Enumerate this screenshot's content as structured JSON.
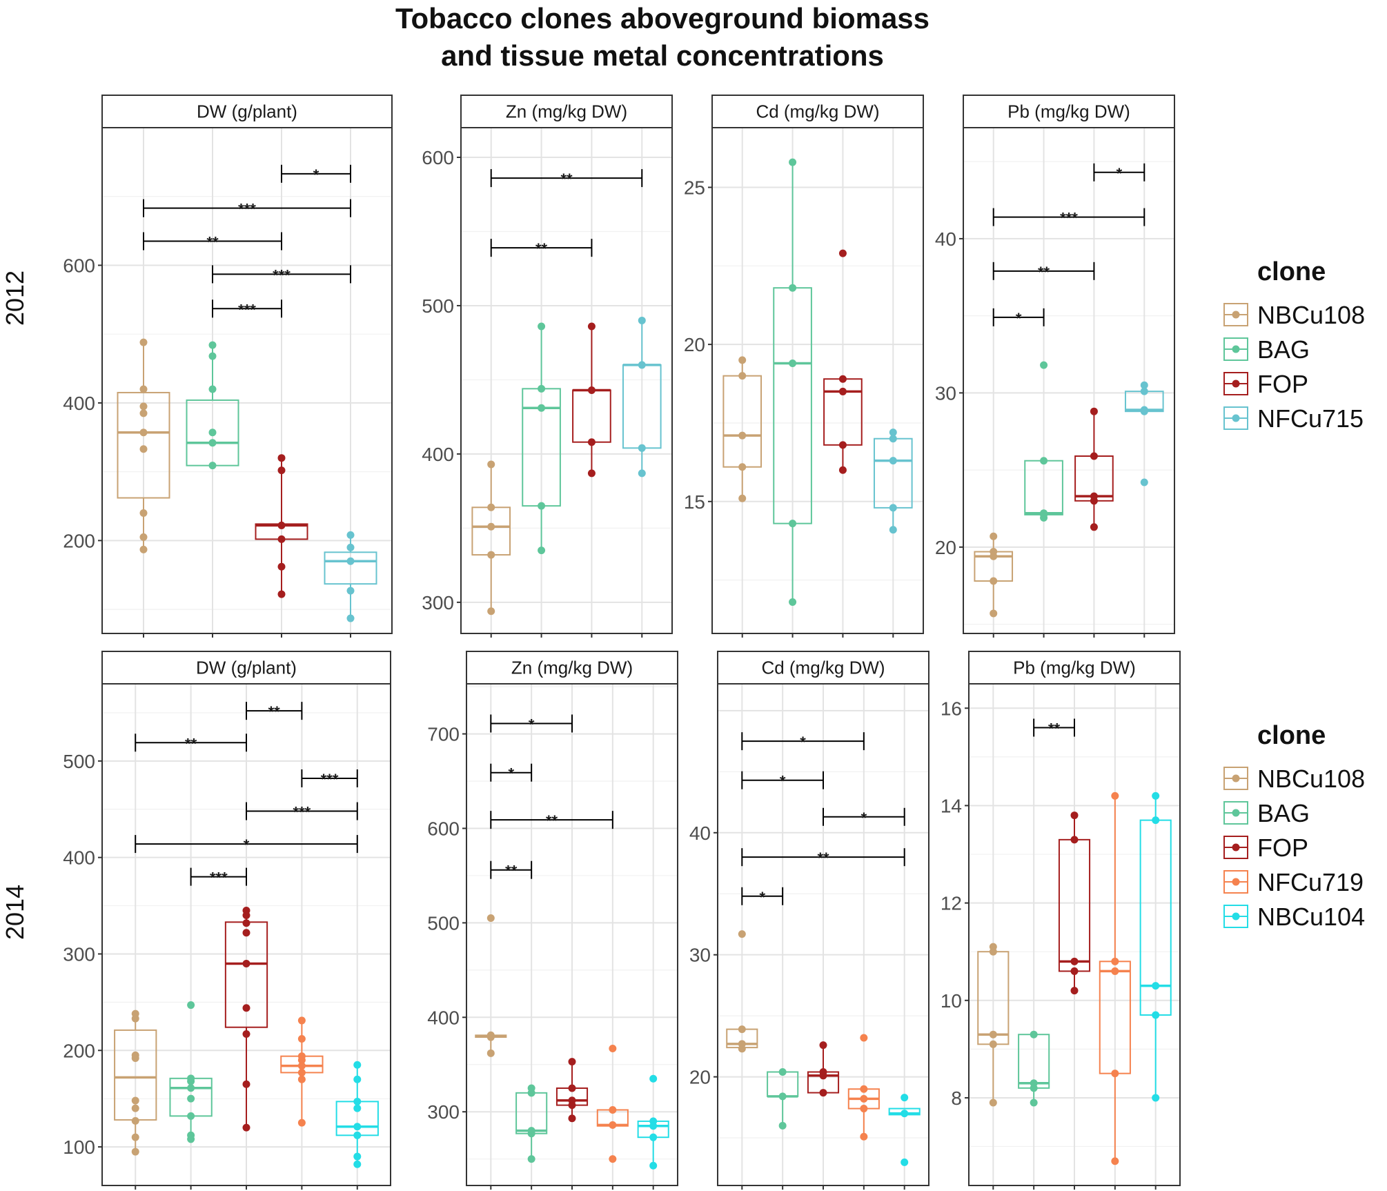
{
  "title": {
    "line1": "Tobacco clones aboveground biomass",
    "line2": "and tissue metal concentrations"
  },
  "colors": {
    "NBCu108": "#c8a273",
    "BAG": "#5ec69a",
    "FOP": "#a51e1e",
    "NFCu715": "#67c3cf",
    "NFCu719": "#f5824e",
    "NBCu104": "#23dde6"
  },
  "chart_data": [
    {
      "type": "box",
      "row": "2012",
      "strip": "DW (g/plant)",
      "clones": [
        "NBCu108",
        "BAG",
        "FOP",
        "NFCu715"
      ],
      "ylim": [
        65,
        800
      ],
      "yticks": [
        200,
        400,
        600
      ],
      "boxes": [
        {
          "q1": 262,
          "median": 357,
          "q3": 415,
          "wlo": 187,
          "whi": 488,
          "points": [
            488,
            420,
            395,
            385,
            357,
            333,
            240,
            205,
            187
          ]
        },
        {
          "q1": 309,
          "median": 342,
          "q3": 404,
          "wlo": 309,
          "whi": 484,
          "points": [
            484,
            468,
            420,
            357,
            342,
            309
          ]
        },
        {
          "q1": 202,
          "median": 222,
          "q3": 224,
          "wlo": 122,
          "whi": 320,
          "points": [
            320,
            302,
            222,
            202,
            162,
            122
          ]
        },
        {
          "q1": 137,
          "median": 170,
          "q3": 183,
          "wlo": 87,
          "whi": 208,
          "points": [
            208,
            190,
            170,
            127,
            87
          ]
        }
      ],
      "brackets": [
        {
          "from": 3,
          "to": 4,
          "y": 733,
          "label": "*"
        },
        {
          "from": 1,
          "to": 4,
          "y": 683,
          "label": "***"
        },
        {
          "from": 1,
          "to": 3,
          "y": 635,
          "label": "**"
        },
        {
          "from": 2,
          "to": 4,
          "y": 587,
          "label": "***"
        },
        {
          "from": 2,
          "to": 3,
          "y": 537,
          "label": "***"
        }
      ]
    },
    {
      "type": "box",
      "row": "2012",
      "strip": "Zn (mg/kg DW)",
      "clones": [
        "NBCu108",
        "BAG",
        "FOP",
        "NFCu715"
      ],
      "ylim": [
        279,
        620
      ],
      "yticks": [
        300,
        400,
        500,
        600
      ],
      "boxes": [
        {
          "q1": 332,
          "median": 351,
          "q3": 364,
          "wlo": 294,
          "whi": 393,
          "points": [
            393,
            364,
            351,
            332,
            294
          ]
        },
        {
          "q1": 365,
          "median": 431,
          "q3": 444,
          "wlo": 335,
          "whi": 486,
          "points": [
            486,
            444,
            431,
            365,
            335
          ]
        },
        {
          "q1": 408,
          "median": 443,
          "q3": 443,
          "wlo": 387,
          "whi": 486,
          "points": [
            486,
            443,
            408,
            387
          ]
        },
        {
          "q1": 404,
          "median": 460,
          "q3": 460,
          "wlo": 387,
          "whi": 490,
          "points": [
            490,
            460,
            404,
            387
          ]
        }
      ],
      "brackets": [
        {
          "from": 1,
          "to": 4,
          "y": 586,
          "label": "**"
        },
        {
          "from": 1,
          "to": 3,
          "y": 539,
          "label": "**"
        }
      ]
    },
    {
      "type": "box",
      "row": "2012",
      "strip": "Cd (mg/kg DW)",
      "clones": [
        "NBCu108",
        "BAG",
        "FOP",
        "NFCu715"
      ],
      "ylim": [
        10.8,
        26.9
      ],
      "yticks": [
        15,
        20,
        25
      ],
      "boxes": [
        {
          "q1": 16.1,
          "median": 17.1,
          "q3": 19.0,
          "wlo": 15.1,
          "whi": 19.5,
          "points": [
            19.5,
            19.0,
            17.1,
            16.1,
            15.1
          ]
        },
        {
          "q1": 14.3,
          "median": 19.4,
          "q3": 21.8,
          "wlo": 11.8,
          "whi": 25.8,
          "points": [
            25.8,
            21.8,
            19.4,
            14.3,
            11.8
          ]
        },
        {
          "q1": 16.8,
          "median": 18.5,
          "q3": 18.9,
          "wlo": 16.0,
          "whi": 18.9,
          "points": [
            22.9,
            18.9,
            18.5,
            16.8,
            16.0
          ]
        },
        {
          "q1": 14.8,
          "median": 16.3,
          "q3": 17.0,
          "wlo": 14.1,
          "whi": 17.2,
          "points": [
            17.2,
            17.0,
            16.3,
            14.8,
            14.1
          ]
        }
      ],
      "brackets": []
    },
    {
      "type": "box",
      "row": "2012",
      "strip": "Pb (mg/kg DW)",
      "clones": [
        "NBCu108",
        "BAG",
        "FOP",
        "NFCu715"
      ],
      "ylim": [
        14.4,
        47.2
      ],
      "yticks": [
        20,
        30,
        40
      ],
      "boxes": [
        {
          "q1": 17.8,
          "median": 19.4,
          "q3": 19.7,
          "wlo": 15.7,
          "whi": 20.7,
          "points": [
            20.7,
            19.7,
            19.4,
            17.8,
            15.7
          ]
        },
        {
          "q1": 22.1,
          "median": 22.2,
          "q3": 25.6,
          "wlo": 21.9,
          "whi": 25.6,
          "points": [
            31.8,
            25.6,
            22.2,
            22.1,
            21.9
          ]
        },
        {
          "q1": 23.0,
          "median": 23.3,
          "q3": 25.9,
          "wlo": 21.3,
          "whi": 28.8,
          "points": [
            28.8,
            25.9,
            23.3,
            23.0,
            21.3
          ]
        },
        {
          "q1": 28.8,
          "median": 28.9,
          "q3": 30.1,
          "wlo": 28.8,
          "whi": 30.5,
          "points": [
            30.5,
            30.1,
            28.9,
            28.8,
            24.2
          ]
        }
      ],
      "brackets": [
        {
          "from": 3,
          "to": 4,
          "y": 44.3,
          "label": "*"
        },
        {
          "from": 1,
          "to": 4,
          "y": 41.4,
          "label": "***"
        },
        {
          "from": 1,
          "to": 3,
          "y": 37.9,
          "label": "**"
        },
        {
          "from": 1,
          "to": 2,
          "y": 34.9,
          "label": "*"
        }
      ]
    },
    {
      "type": "box",
      "row": "2014",
      "strip": "DW (g/plant)",
      "clones": [
        "NBCu108",
        "BAG",
        "FOP",
        "NFCu719",
        "NBCu104"
      ],
      "ylim": [
        60,
        580
      ],
      "yticks": [
        100,
        200,
        300,
        400,
        500
      ],
      "boxes": [
        {
          "q1": 128,
          "median": 172,
          "q3": 221,
          "wlo": 95,
          "whi": 238,
          "points": [
            238,
            233,
            195,
            192,
            148,
            140,
            127,
            110,
            95
          ]
        },
        {
          "q1": 132,
          "median": 161,
          "q3": 171,
          "wlo": 108,
          "whi": 171,
          "points": [
            247,
            171,
            168,
            161,
            150,
            132,
            112,
            108
          ]
        },
        {
          "q1": 224,
          "median": 290,
          "q3": 333,
          "wlo": 120,
          "whi": 345,
          "points": [
            345,
            340,
            332,
            322,
            290,
            244,
            217,
            165,
            120
          ]
        },
        {
          "q1": 177,
          "median": 184,
          "q3": 194,
          "wlo": 125,
          "whi": 231,
          "points": [
            231,
            212,
            194,
            190,
            184,
            177,
            170,
            125
          ]
        },
        {
          "q1": 112,
          "median": 121,
          "q3": 147,
          "wlo": 82,
          "whi": 185,
          "points": [
            185,
            170,
            147,
            140,
            121,
            112,
            90,
            82
          ]
        }
      ],
      "brackets": [
        {
          "from": 3,
          "to": 4,
          "y": 552,
          "label": "**"
        },
        {
          "from": 1,
          "to": 3,
          "y": 519,
          "label": "**"
        },
        {
          "from": 4,
          "to": 5,
          "y": 482,
          "label": "***"
        },
        {
          "from": 3,
          "to": 5,
          "y": 448,
          "label": "***"
        },
        {
          "from": 1,
          "to": 5,
          "y": 414,
          "label": "*"
        },
        {
          "from": 2,
          "to": 3,
          "y": 380,
          "label": "***"
        }
      ]
    },
    {
      "type": "box",
      "row": "2014",
      "strip": "Zn (mg/kg DW)",
      "clones": [
        "NBCu108",
        "BAG",
        "FOP",
        "NFCu719",
        "NBCu104"
      ],
      "ylim": [
        222,
        753
      ],
      "yticks": [
        300,
        400,
        500,
        600,
        700
      ],
      "boxes": [
        {
          "q1": 379,
          "median": 380,
          "q3": 381,
          "wlo": 362,
          "whi": 381,
          "points": [
            505,
            381,
            379,
            362
          ]
        },
        {
          "q1": 277,
          "median": 280,
          "q3": 320,
          "wlo": 250,
          "whi": 325,
          "points": [
            325,
            320,
            280,
            277,
            250
          ]
        },
        {
          "q1": 307,
          "median": 312,
          "q3": 325,
          "wlo": 293,
          "whi": 353,
          "points": [
            353,
            325,
            312,
            307,
            293
          ]
        },
        {
          "q1": 285,
          "median": 286,
          "q3": 302,
          "wlo": 285,
          "whi": 302,
          "points": [
            367,
            302,
            286,
            250
          ]
        },
        {
          "q1": 273,
          "median": 285,
          "q3": 290,
          "wlo": 243,
          "whi": 290,
          "points": [
            335,
            290,
            285,
            273,
            243
          ]
        }
      ],
      "brackets": [
        {
          "from": 1,
          "to": 3,
          "y": 711,
          "label": "*"
        },
        {
          "from": 1,
          "to": 2,
          "y": 659,
          "label": "*"
        },
        {
          "from": 1,
          "to": 4,
          "y": 609,
          "label": "**"
        },
        {
          "from": 1,
          "to": 2,
          "y": 556,
          "label": "**"
        }
      ]
    },
    {
      "type": "box",
      "row": "2014",
      "strip": "Cd (mg/kg DW)",
      "clones": [
        "NBCu108",
        "BAG",
        "FOP",
        "NFCu719",
        "NBCu104"
      ],
      "ylim": [
        11.1,
        52.2
      ],
      "yticks": [
        20,
        30,
        40
      ],
      "boxes": [
        {
          "q1": 22.4,
          "median": 22.7,
          "q3": 23.9,
          "wlo": 22.3,
          "whi": 23.9,
          "points": [
            31.7,
            23.9,
            22.7,
            22.3
          ]
        },
        {
          "q1": 18.4,
          "median": 18.4,
          "q3": 20.4,
          "wlo": 16.0,
          "whi": 20.4,
          "points": [
            20.4,
            18.4,
            16.0
          ]
        },
        {
          "q1": 18.7,
          "median": 20.1,
          "q3": 20.4,
          "wlo": 18.7,
          "whi": 22.6,
          "points": [
            22.6,
            20.4,
            20.1,
            18.7
          ]
        },
        {
          "q1": 17.4,
          "median": 18.2,
          "q3": 19.0,
          "wlo": 15.1,
          "whi": 19.0,
          "points": [
            23.2,
            19.0,
            18.2,
            17.4,
            15.1
          ]
        },
        {
          "q1": 16.9,
          "median": 17.0,
          "q3": 17.4,
          "wlo": 16.9,
          "whi": 17.4,
          "points": [
            18.3,
            17.0,
            13.0
          ]
        }
      ],
      "brackets": [
        {
          "from": 1,
          "to": 4,
          "y": 47.5,
          "label": "*"
        },
        {
          "from": 1,
          "to": 3,
          "y": 44.3,
          "label": "*"
        },
        {
          "from": 3,
          "to": 5,
          "y": 41.3,
          "label": "*"
        },
        {
          "from": 1,
          "to": 5,
          "y": 38.0,
          "label": "**"
        },
        {
          "from": 1,
          "to": 2,
          "y": 34.8,
          "label": "*"
        }
      ]
    },
    {
      "type": "box",
      "row": "2014",
      "strip": "Pb (mg/kg DW)",
      "clones": [
        "NBCu108",
        "BAG",
        "FOP",
        "NFCu719",
        "NBCu104"
      ],
      "ylim": [
        6.2,
        16.5
      ],
      "yticks": [
        8,
        10,
        12,
        14,
        16
      ],
      "boxes": [
        {
          "q1": 9.1,
          "median": 9.3,
          "q3": 11.0,
          "wlo": 7.9,
          "whi": 11.1,
          "points": [
            11.1,
            11.0,
            9.3,
            9.1,
            7.9
          ]
        },
        {
          "q1": 8.2,
          "median": 8.3,
          "q3": 9.3,
          "wlo": 7.9,
          "whi": 9.3,
          "points": [
            9.3,
            8.3,
            8.2,
            7.9
          ]
        },
        {
          "q1": 10.6,
          "median": 10.8,
          "q3": 13.3,
          "wlo": 10.2,
          "whi": 13.8,
          "points": [
            13.8,
            13.3,
            10.8,
            10.6,
            10.2
          ]
        },
        {
          "q1": 8.5,
          "median": 10.6,
          "q3": 10.8,
          "wlo": 6.7,
          "whi": 14.2,
          "points": [
            14.2,
            10.8,
            10.6,
            8.5,
            6.7
          ]
        },
        {
          "q1": 9.7,
          "median": 10.3,
          "q3": 13.7,
          "wlo": 8.0,
          "whi": 14.2,
          "points": [
            14.2,
            13.7,
            10.3,
            9.7,
            8.0
          ]
        }
      ],
      "brackets": [
        {
          "from": 2,
          "to": 3,
          "y": 15.6,
          "label": "**"
        }
      ]
    }
  ],
  "row_labels": [
    "2012",
    "2014"
  ],
  "legends": [
    {
      "title": "clone",
      "items": [
        "NBCu108",
        "BAG",
        "FOP",
        "NFCu715"
      ]
    },
    {
      "title": "clone",
      "items": [
        "NBCu108",
        "BAG",
        "FOP",
        "NFCu719",
        "NBCu104"
      ]
    }
  ]
}
